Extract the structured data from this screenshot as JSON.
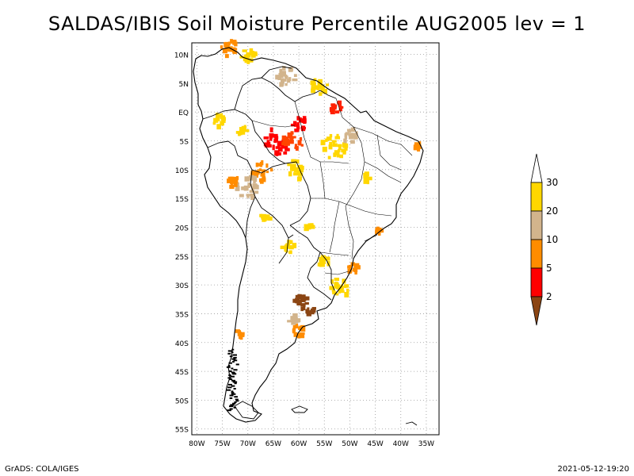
{
  "title": "SALDAS/IBIS Soil Moisture Percentile AUG2005 lev = 1",
  "footer": {
    "left": "GrADS: COLA/IGES",
    "right": "2021-05-12-19:20"
  },
  "map": {
    "lat_labels": [
      "10N",
      "5N",
      "EQ",
      "5S",
      "10S",
      "15S",
      "20S",
      "25S",
      "30S",
      "35S",
      "40S",
      "45S",
      "50S",
      "55S"
    ],
    "lat_values": [
      10,
      5,
      0,
      -5,
      -10,
      -15,
      -20,
      -25,
      -30,
      -35,
      -40,
      -45,
      -50,
      -55
    ],
    "lon_labels": [
      "80W",
      "75W",
      "70W",
      "65W",
      "60W",
      "55W",
      "50W",
      "45W",
      "40W",
      "35W"
    ],
    "lon_values": [
      -80,
      -75,
      -70,
      -65,
      -60,
      -55,
      -50,
      -45,
      -40,
      -35
    ],
    "lon_range": [
      -81,
      -32.5
    ],
    "lat_range": [
      -56,
      12
    ],
    "grid": true
  },
  "legend": {
    "labels": [
      "30",
      "20",
      "10",
      "5",
      "2"
    ],
    "colors": [
      "#ffffff",
      "#ffd700",
      "#d2b48c",
      "#ff8c00",
      "#ff0000",
      "#8b4513"
    ]
  },
  "anomalies": [
    {
      "lon": -64.0,
      "lat": -5.0,
      "color": "#ff0000",
      "size": 2.2
    },
    {
      "lon": -61.0,
      "lat": -5.0,
      "color": "#ff4500",
      "size": 1.6
    },
    {
      "lon": -60.0,
      "lat": -2.0,
      "color": "#ff0000",
      "size": 1.2
    },
    {
      "lon": -52.5,
      "lat": 0.8,
      "color": "#ff2000",
      "size": 1.0
    },
    {
      "lon": -73.5,
      "lat": 11.0,
      "color": "#ff8c00",
      "size": 1.4
    },
    {
      "lon": -70.0,
      "lat": 10.0,
      "color": "#ffd700",
      "size": 1.2
    },
    {
      "lon": -62.5,
      "lat": 6.0,
      "color": "#d2b48c",
      "size": 1.6
    },
    {
      "lon": -56.0,
      "lat": 4.5,
      "color": "#ffd700",
      "size": 1.3
    },
    {
      "lon": -75.5,
      "lat": -1.5,
      "color": "#ffd700",
      "size": 1.0
    },
    {
      "lon": -67.0,
      "lat": -10.5,
      "color": "#ff8c00",
      "size": 1.6
    },
    {
      "lon": -70.0,
      "lat": -13.0,
      "color": "#d2b48c",
      "size": 1.8
    },
    {
      "lon": -73.0,
      "lat": -12.0,
      "color": "#ff8c00",
      "size": 1.0
    },
    {
      "lon": -60.5,
      "lat": -10.0,
      "color": "#ffd700",
      "size": 1.6
    },
    {
      "lon": -53.0,
      "lat": -6.0,
      "color": "#ffd700",
      "size": 2.0
    },
    {
      "lon": -50.0,
      "lat": -4.0,
      "color": "#d2b48c",
      "size": 1.2
    },
    {
      "lon": -36.5,
      "lat": -6.0,
      "color": "#ff8c00",
      "size": 0.7
    },
    {
      "lon": -49.5,
      "lat": -27.0,
      "color": "#ff8c00",
      "size": 1.0
    },
    {
      "lon": -52.0,
      "lat": -30.5,
      "color": "#ffd700",
      "size": 1.6
    },
    {
      "lon": -59.5,
      "lat": -33.0,
      "color": "#8b4513",
      "size": 1.2
    },
    {
      "lon": -57.5,
      "lat": -34.5,
      "color": "#8b4513",
      "size": 0.8
    },
    {
      "lon": -60.0,
      "lat": -38.0,
      "color": "#ff8c00",
      "size": 0.9
    },
    {
      "lon": -71.5,
      "lat": -38.5,
      "color": "#ff8c00",
      "size": 0.6
    },
    {
      "lon": -62.0,
      "lat": -23.5,
      "color": "#ffd700",
      "size": 1.0
    },
    {
      "lon": -66.5,
      "lat": -18.0,
      "color": "#ffd700",
      "size": 0.8
    },
    {
      "lon": -47.0,
      "lat": -11.5,
      "color": "#ffd700",
      "size": 0.8
    },
    {
      "lon": -44.5,
      "lat": -20.5,
      "color": "#ff8c00",
      "size": 0.6
    },
    {
      "lon": -58.0,
      "lat": -20.0,
      "color": "#ffd700",
      "size": 0.7
    },
    {
      "lon": -55.0,
      "lat": -26.0,
      "color": "#ffd700",
      "size": 0.9
    },
    {
      "lon": -71.0,
      "lat": -3.5,
      "color": "#ffd700",
      "size": 0.8
    },
    {
      "lon": -61.0,
      "lat": -36.0,
      "color": "#d2b48c",
      "size": 0.7
    }
  ]
}
